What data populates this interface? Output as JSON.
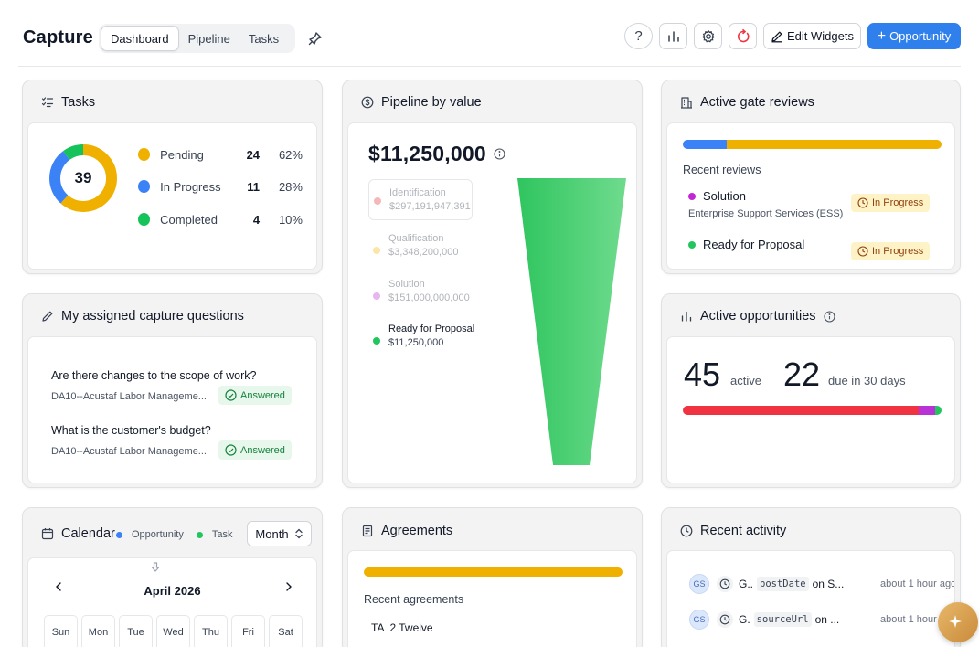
{
  "header": {
    "title": "Capture",
    "tabs": [
      {
        "label": "Dashboard",
        "active": true
      },
      {
        "label": "Pipeline",
        "active": false
      },
      {
        "label": "Tasks",
        "active": false
      }
    ],
    "help_label": "?",
    "edit_widgets_label": "Edit Widgets",
    "opportunity_label": "Opportunity",
    "opportunity_plus": "+"
  },
  "tasks": {
    "title": "Tasks",
    "total": "39",
    "items": [
      {
        "label": "Pending",
        "count": "24",
        "pct": "62%",
        "color": "#f0b000"
      },
      {
        "label": "In Progress",
        "count": "11",
        "pct": "28%",
        "color": "#3b82f6"
      },
      {
        "label": "Completed",
        "count": "4",
        "pct": "10%",
        "color": "#16c25a"
      }
    ]
  },
  "pipeline": {
    "title": "Pipeline by value",
    "total": "$11,250,000",
    "stages": [
      {
        "name": "Identification",
        "value": "$297,191,947,391",
        "color": "#f4b8b8"
      },
      {
        "name": "Qualification",
        "value": "$3,348,200,000",
        "color": "#fbe6a8"
      },
      {
        "name": "Solution",
        "value": "$151,000,000,000",
        "color": "#e9b5ee"
      },
      {
        "name": "Ready for Proposal",
        "value": "$11,250,000",
        "color": "#22c55e"
      }
    ],
    "funnel_color": "#3fcf6e"
  },
  "gate_reviews": {
    "title": "Active gate reviews",
    "bar": [
      {
        "fraction": 0.17,
        "color": "#3b82f6"
      },
      {
        "fraction": 0.83,
        "color": "#f0b000"
      }
    ],
    "section_label": "Recent reviews",
    "items": [
      {
        "title": "Solution",
        "subtitle": "Enterprise Support Services (ESS)",
        "status": "In Progress",
        "dot": "#c026d3"
      },
      {
        "title": "Ready for Proposal",
        "subtitle": "",
        "status": "In Progress",
        "dot": "#22c55e"
      }
    ]
  },
  "questions": {
    "title": "My assigned capture questions",
    "items": [
      {
        "question": "Are there changes to the scope of work?",
        "opportunity": "DA10--Acustaf Labor Manageme...",
        "status": "Answered"
      },
      {
        "question": "What is the customer's budget?",
        "opportunity": "DA10--Acustaf Labor Manageme...",
        "status": "Answered"
      }
    ]
  },
  "active_opps": {
    "title": "Active opportunities",
    "active_count": "45",
    "active_label": "active",
    "due_count": "22",
    "due_label": "due in 30 days",
    "bar": [
      {
        "fraction": 0.91,
        "color": "#ef3340"
      },
      {
        "fraction": 0.065,
        "color": "#b832d6"
      },
      {
        "fraction": 0.025,
        "color": "#22c55e"
      }
    ]
  },
  "calendar": {
    "title": "Calendar",
    "legend": [
      {
        "label": "Opportunity",
        "color": "#3b82f6"
      },
      {
        "label": "Task",
        "color": "#22c55e"
      }
    ],
    "view": "Month",
    "month": "April 2026",
    "days": [
      "Sun",
      "Mon",
      "Tue",
      "Wed",
      "Thu",
      "Fri",
      "Sat"
    ]
  },
  "agreements": {
    "title": "Agreements",
    "bar_color": "#f0b000",
    "section_label": "Recent agreements",
    "first_item": "TA  2 Twelve"
  },
  "activity": {
    "title": "Recent activity",
    "items": [
      {
        "initials": "GS",
        "actor": "G..",
        "field": "postDate",
        "rest": "on S...",
        "time": "about 1 hour ago"
      },
      {
        "initials": "GS",
        "actor": "G.",
        "field": "sourceUrl",
        "rest": "on ...",
        "time": "about 1 hour ago"
      }
    ]
  }
}
